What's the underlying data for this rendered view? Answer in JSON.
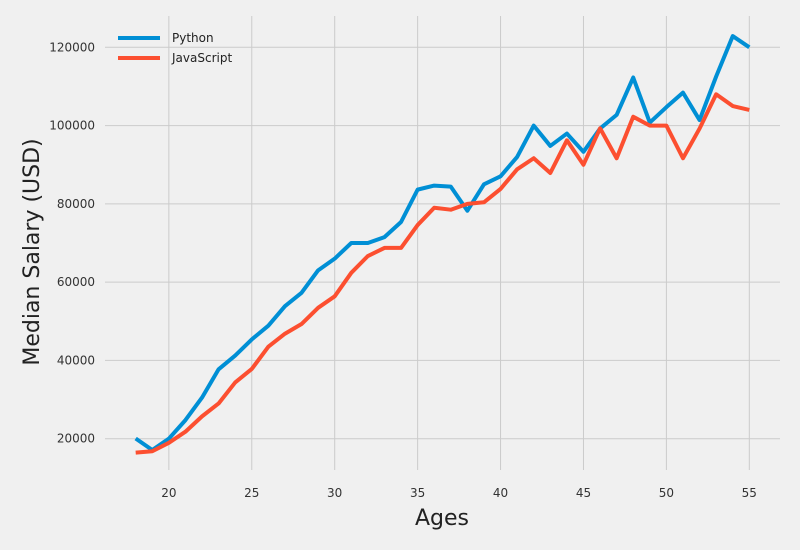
{
  "chart_data": {
    "type": "line",
    "title": "",
    "xlabel": "Ages",
    "ylabel": "Median Salary (USD)",
    "xlim": [
      16.15,
      56.85
    ],
    "ylim": [
      12000,
      128000
    ],
    "xticks": [
      20,
      25,
      30,
      35,
      40,
      45,
      50,
      55
    ],
    "yticks": [
      20000,
      40000,
      60000,
      80000,
      100000,
      120000
    ],
    "grid": true,
    "legend": "top-left",
    "x": [
      18,
      19,
      20,
      21,
      22,
      23,
      24,
      25,
      26,
      27,
      28,
      29,
      30,
      31,
      32,
      33,
      34,
      35,
      36,
      37,
      38,
      39,
      40,
      41,
      42,
      43,
      44,
      45,
      46,
      47,
      48,
      49,
      50,
      51,
      52,
      53,
      54,
      55
    ],
    "series": [
      {
        "name": "Python",
        "color": "#008fd5",
        "values": [
          20046,
          17100,
          20000,
          24744,
          30500,
          37732,
          41247,
          45372,
          48876,
          53850,
          57287,
          63016,
          65998,
          70003,
          70000,
          71496,
          75370,
          83640,
          84666,
          84392,
          78254,
          85000,
          87038,
          91991,
          100000,
          94796,
          97962,
          93302,
          99240,
          102736,
          112285,
          100771,
          104708,
          108423,
          101407,
          112542,
          122870,
          120000
        ]
      },
      {
        "name": "JavaScript",
        "color": "#fc4f30",
        "values": [
          16446,
          16791,
          18942,
          21780,
          25704,
          29000,
          34372,
          37810,
          43515,
          46823,
          49293,
          53437,
          56373,
          62375,
          66674,
          68745,
          68746,
          74583,
          79000,
          78508,
          79996,
          80403,
          83820,
          88833,
          91660,
          87892,
          96243,
          90000,
          99313,
          91660,
          102264,
          100000,
          100000,
          91660,
          99240,
          108000,
          105000,
          104000
        ]
      }
    ]
  }
}
